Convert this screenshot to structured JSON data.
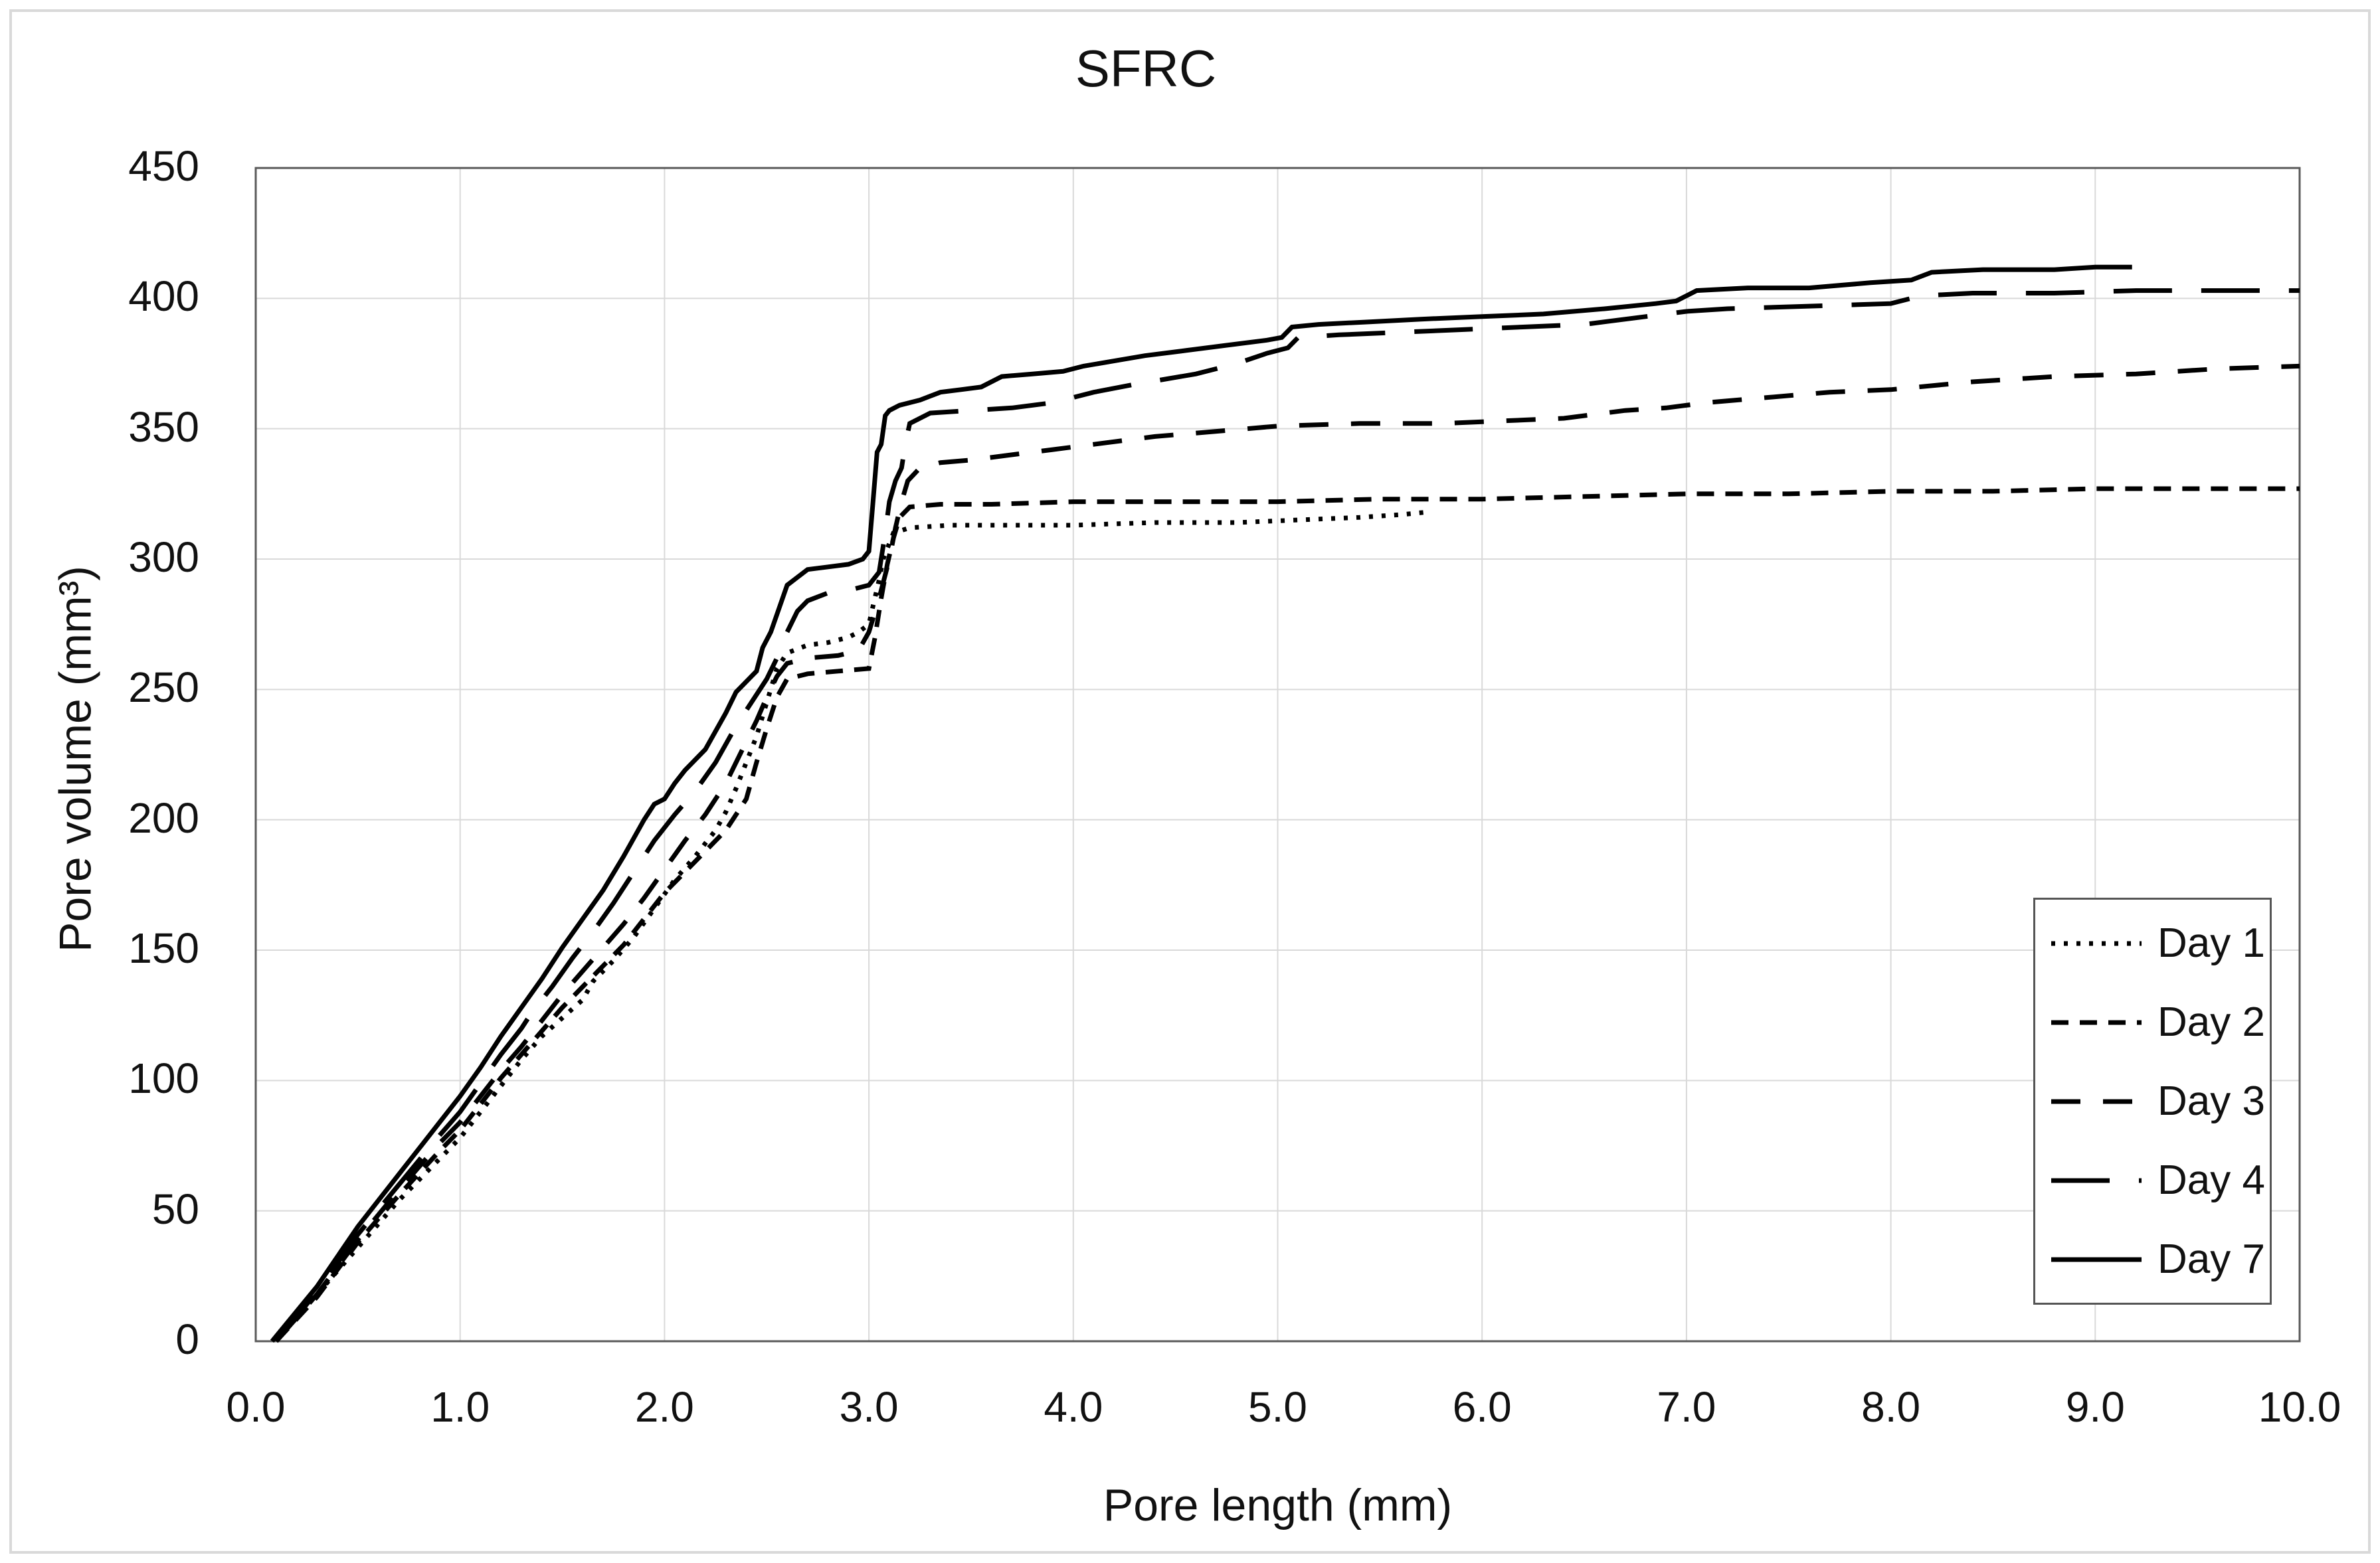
{
  "chart_data": {
    "type": "line",
    "title": "SFRC",
    "xlabel": "Pore length (mm)",
    "ylabel": "Pore volume (mm³)",
    "xlim": [
      0,
      10
    ],
    "ylim": [
      0,
      450
    ],
    "grid": true,
    "legend_position": "inside-right",
    "x_ticks": [
      {
        "v": 0,
        "label": "0.0"
      },
      {
        "v": 1,
        "label": "1.0"
      },
      {
        "v": 2,
        "label": "2.0"
      },
      {
        "v": 3,
        "label": "3.0"
      },
      {
        "v": 4,
        "label": "4.0"
      },
      {
        "v": 5,
        "label": "5.0"
      },
      {
        "v": 6,
        "label": "6.0"
      },
      {
        "v": 7,
        "label": "7.0"
      },
      {
        "v": 8,
        "label": "8.0"
      },
      {
        "v": 9,
        "label": "9.0"
      },
      {
        "v": 10,
        "label": "10.0"
      }
    ],
    "y_ticks": [
      {
        "v": 0,
        "label": "0"
      },
      {
        "v": 50,
        "label": "50"
      },
      {
        "v": 100,
        "label": "100"
      },
      {
        "v": 150,
        "label": "150"
      },
      {
        "v": 200,
        "label": "200"
      },
      {
        "v": 250,
        "label": "250"
      },
      {
        "v": 300,
        "label": "300"
      },
      {
        "v": 350,
        "label": "350"
      },
      {
        "v": 400,
        "label": "400"
      },
      {
        "v": 450,
        "label": "450"
      }
    ],
    "series": [
      {
        "name": "Day 1",
        "style": "dotted",
        "points": [
          [
            0.1,
            0
          ],
          [
            0.3,
            18
          ],
          [
            0.5,
            36
          ],
          [
            0.7,
            54
          ],
          [
            0.9,
            70
          ],
          [
            1.0,
            78
          ],
          [
            1.1,
            88
          ],
          [
            1.2,
            98
          ],
          [
            1.3,
            108
          ],
          [
            1.4,
            117
          ],
          [
            1.5,
            124
          ],
          [
            1.6,
            131
          ],
          [
            1.65,
            138
          ],
          [
            1.75,
            146
          ],
          [
            1.85,
            155
          ],
          [
            1.95,
            166
          ],
          [
            2.05,
            177
          ],
          [
            2.15,
            186
          ],
          [
            2.25,
            196
          ],
          [
            2.3,
            203
          ],
          [
            2.35,
            212
          ],
          [
            2.4,
            222
          ],
          [
            2.45,
            232
          ],
          [
            2.5,
            245
          ],
          [
            2.55,
            258
          ],
          [
            2.6,
            264
          ],
          [
            2.7,
            267
          ],
          [
            2.8,
            268
          ],
          [
            2.9,
            270
          ],
          [
            2.95,
            272
          ],
          [
            3.0,
            275
          ],
          [
            3.02,
            282
          ],
          [
            3.05,
            292
          ],
          [
            3.07,
            300
          ],
          [
            3.1,
            306
          ],
          [
            3.12,
            310
          ],
          [
            3.2,
            312
          ],
          [
            3.4,
            313
          ],
          [
            3.7,
            313
          ],
          [
            4.0,
            313
          ],
          [
            4.4,
            314
          ],
          [
            4.8,
            314
          ],
          [
            5.1,
            315
          ],
          [
            5.4,
            316
          ],
          [
            5.6,
            317
          ],
          [
            5.73,
            318
          ]
        ]
      },
      {
        "name": "Day 2",
        "style": "dash-short",
        "points": [
          [
            0.1,
            0
          ],
          [
            0.3,
            17
          ],
          [
            0.5,
            38
          ],
          [
            0.7,
            56
          ],
          [
            0.9,
            73
          ],
          [
            1.0,
            81
          ],
          [
            1.1,
            91
          ],
          [
            1.2,
            101
          ],
          [
            1.3,
            110
          ],
          [
            1.4,
            119
          ],
          [
            1.5,
            128
          ],
          [
            1.6,
            136
          ],
          [
            1.7,
            144
          ],
          [
            1.8,
            152
          ],
          [
            1.9,
            162
          ],
          [
            2.0,
            172
          ],
          [
            2.1,
            180
          ],
          [
            2.2,
            188
          ],
          [
            2.3,
            196
          ],
          [
            2.4,
            208
          ],
          [
            2.45,
            222
          ],
          [
            2.5,
            235
          ],
          [
            2.55,
            247
          ],
          [
            2.6,
            254
          ],
          [
            2.7,
            256
          ],
          [
            2.85,
            257
          ],
          [
            3.0,
            258
          ],
          [
            3.03,
            270
          ],
          [
            3.06,
            285
          ],
          [
            3.09,
            298
          ],
          [
            3.12,
            308
          ],
          [
            3.15,
            316
          ],
          [
            3.2,
            320
          ],
          [
            3.35,
            321
          ],
          [
            3.6,
            321
          ],
          [
            4.0,
            322
          ],
          [
            4.5,
            322
          ],
          [
            5.0,
            322
          ],
          [
            5.5,
            323
          ],
          [
            6.0,
            323
          ],
          [
            6.5,
            324
          ],
          [
            7.0,
            325
          ],
          [
            7.5,
            325
          ],
          [
            8.0,
            326
          ],
          [
            8.5,
            326
          ],
          [
            9.0,
            327
          ],
          [
            9.5,
            327
          ],
          [
            10.0,
            327
          ]
        ]
      },
      {
        "name": "Day 3",
        "style": "dash-medium",
        "points": [
          [
            0.1,
            0
          ],
          [
            0.3,
            18
          ],
          [
            0.5,
            39
          ],
          [
            0.7,
            58
          ],
          [
            0.9,
            76
          ],
          [
            1.0,
            84
          ],
          [
            1.1,
            94
          ],
          [
            1.2,
            104
          ],
          [
            1.3,
            113
          ],
          [
            1.4,
            123
          ],
          [
            1.5,
            133
          ],
          [
            1.6,
            142
          ],
          [
            1.7,
            151
          ],
          [
            1.8,
            160
          ],
          [
            1.9,
            170
          ],
          [
            2.0,
            181
          ],
          [
            2.1,
            192
          ],
          [
            2.2,
            202
          ],
          [
            2.3,
            214
          ],
          [
            2.35,
            222
          ],
          [
            2.4,
            230
          ],
          [
            2.45,
            238
          ],
          [
            2.5,
            247
          ],
          [
            2.55,
            255
          ],
          [
            2.6,
            260
          ],
          [
            2.7,
            262
          ],
          [
            2.85,
            263
          ],
          [
            2.95,
            265
          ],
          [
            3.0,
            272
          ],
          [
            3.05,
            285
          ],
          [
            3.1,
            300
          ],
          [
            3.13,
            312
          ],
          [
            3.16,
            322
          ],
          [
            3.19,
            330
          ],
          [
            3.25,
            335
          ],
          [
            3.35,
            337
          ],
          [
            3.5,
            338
          ],
          [
            3.7,
            340
          ],
          [
            3.9,
            342
          ],
          [
            4.1,
            344
          ],
          [
            4.4,
            347
          ],
          [
            4.7,
            349
          ],
          [
            5.0,
            351
          ],
          [
            5.4,
            352
          ],
          [
            5.8,
            352
          ],
          [
            6.1,
            353
          ],
          [
            6.4,
            354
          ],
          [
            6.7,
            357
          ],
          [
            6.9,
            358
          ],
          [
            7.1,
            360
          ],
          [
            7.4,
            362
          ],
          [
            7.7,
            364
          ],
          [
            8.0,
            365
          ],
          [
            8.4,
            368
          ],
          [
            8.8,
            370
          ],
          [
            9.2,
            371
          ],
          [
            9.6,
            373
          ],
          [
            10.0,
            374
          ]
        ]
      },
      {
        "name": "Day 4",
        "style": "dash-long",
        "points": [
          [
            0.1,
            0
          ],
          [
            0.3,
            19
          ],
          [
            0.5,
            41
          ],
          [
            0.7,
            60
          ],
          [
            0.9,
            79
          ],
          [
            1.0,
            88
          ],
          [
            1.1,
            99
          ],
          [
            1.2,
            110
          ],
          [
            1.3,
            120
          ],
          [
            1.35,
            126
          ],
          [
            1.45,
            136
          ],
          [
            1.55,
            147
          ],
          [
            1.65,
            157
          ],
          [
            1.75,
            168
          ],
          [
            1.85,
            180
          ],
          [
            1.95,
            192
          ],
          [
            2.05,
            202
          ],
          [
            2.15,
            211
          ],
          [
            2.25,
            222
          ],
          [
            2.35,
            236
          ],
          [
            2.45,
            248
          ],
          [
            2.5,
            254
          ],
          [
            2.55,
            262
          ],
          [
            2.6,
            272
          ],
          [
            2.65,
            280
          ],
          [
            2.7,
            284
          ],
          [
            2.8,
            287
          ],
          [
            2.9,
            288
          ],
          [
            3.0,
            290
          ],
          [
            3.05,
            295
          ],
          [
            3.08,
            310
          ],
          [
            3.1,
            322
          ],
          [
            3.13,
            330
          ],
          [
            3.16,
            335
          ],
          [
            3.18,
            345
          ],
          [
            3.2,
            352
          ],
          [
            3.3,
            356
          ],
          [
            3.5,
            357
          ],
          [
            3.7,
            358
          ],
          [
            3.9,
            360
          ],
          [
            4.1,
            364
          ],
          [
            4.3,
            367
          ],
          [
            4.6,
            371
          ],
          [
            4.8,
            375
          ],
          [
            4.95,
            379
          ],
          [
            5.05,
            381
          ],
          [
            5.1,
            385
          ],
          [
            5.3,
            386
          ],
          [
            5.6,
            387
          ],
          [
            5.9,
            388
          ],
          [
            6.2,
            389
          ],
          [
            6.5,
            390
          ],
          [
            6.8,
            393
          ],
          [
            7.0,
            395
          ],
          [
            7.2,
            396
          ],
          [
            7.6,
            397
          ],
          [
            8.0,
            398
          ],
          [
            8.15,
            401
          ],
          [
            8.4,
            402
          ],
          [
            8.8,
            402
          ],
          [
            9.2,
            403
          ],
          [
            9.6,
            403
          ],
          [
            10.0,
            403
          ]
        ]
      },
      {
        "name": "Day 7",
        "style": "solid",
        "points": [
          [
            0.08,
            0
          ],
          [
            0.3,
            21
          ],
          [
            0.5,
            44
          ],
          [
            0.7,
            64
          ],
          [
            0.9,
            84
          ],
          [
            1.0,
            94
          ],
          [
            1.1,
            105
          ],
          [
            1.2,
            117
          ],
          [
            1.3,
            128
          ],
          [
            1.4,
            139
          ],
          [
            1.5,
            151
          ],
          [
            1.6,
            162
          ],
          [
            1.7,
            173
          ],
          [
            1.8,
            186
          ],
          [
            1.9,
            200
          ],
          [
            1.95,
            206
          ],
          [
            2.0,
            208
          ],
          [
            2.05,
            214
          ],
          [
            2.1,
            219
          ],
          [
            2.2,
            227
          ],
          [
            2.3,
            241
          ],
          [
            2.35,
            249
          ],
          [
            2.4,
            253
          ],
          [
            2.45,
            257
          ],
          [
            2.48,
            266
          ],
          [
            2.52,
            272
          ],
          [
            2.56,
            281
          ],
          [
            2.6,
            290
          ],
          [
            2.65,
            293
          ],
          [
            2.7,
            296
          ],
          [
            2.8,
            297
          ],
          [
            2.9,
            298
          ],
          [
            2.97,
            300
          ],
          [
            3.0,
            303
          ],
          [
            3.02,
            322
          ],
          [
            3.04,
            341
          ],
          [
            3.06,
            344
          ],
          [
            3.08,
            355
          ],
          [
            3.1,
            357
          ],
          [
            3.15,
            359
          ],
          [
            3.25,
            361
          ],
          [
            3.35,
            364
          ],
          [
            3.45,
            365
          ],
          [
            3.55,
            366
          ],
          [
            3.65,
            370
          ],
          [
            3.8,
            371
          ],
          [
            3.95,
            372
          ],
          [
            4.05,
            374
          ],
          [
            4.2,
            376
          ],
          [
            4.35,
            378
          ],
          [
            4.55,
            380
          ],
          [
            4.75,
            382
          ],
          [
            4.95,
            384
          ],
          [
            5.02,
            385
          ],
          [
            5.07,
            389
          ],
          [
            5.2,
            390
          ],
          [
            5.45,
            391
          ],
          [
            5.7,
            392
          ],
          [
            6.0,
            393
          ],
          [
            6.3,
            394
          ],
          [
            6.6,
            396
          ],
          [
            6.85,
            398
          ],
          [
            6.95,
            399
          ],
          [
            7.05,
            403
          ],
          [
            7.3,
            404
          ],
          [
            7.6,
            404
          ],
          [
            7.9,
            406
          ],
          [
            8.1,
            407
          ],
          [
            8.2,
            410
          ],
          [
            8.45,
            411
          ],
          [
            8.8,
            411
          ],
          [
            9.0,
            412
          ],
          [
            9.18,
            412
          ]
        ]
      }
    ],
    "colors": {
      "line": "#000000",
      "gridline": "#d9d9d9",
      "plot_border": "#595959",
      "legend_border": "#555555",
      "frame_border": "#d9d9d9",
      "text": "#111111"
    }
  }
}
